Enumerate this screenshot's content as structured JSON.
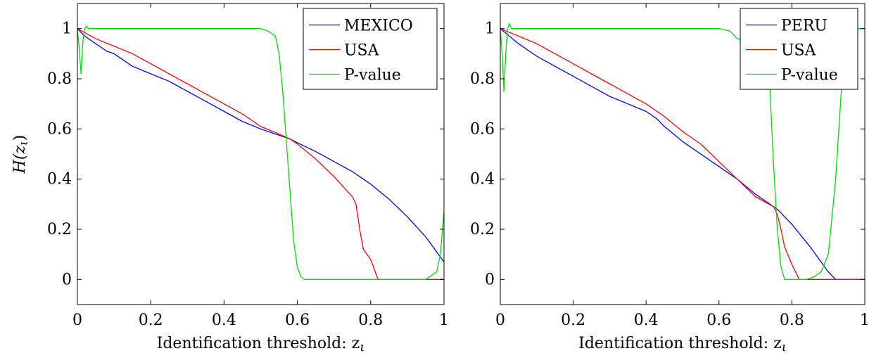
{
  "chart_data": [
    {
      "type": "line",
      "xlabel": "Identification threshold: z",
      "xlabel_sub": "ι",
      "ylabel": "H(z",
      "ylabel_sub": "ι",
      "ylabel_close": ")",
      "xlim": [
        0,
        1
      ],
      "ylim": [
        -0.1,
        1.1
      ],
      "xticks": [
        0,
        0.2,
        0.4,
        0.6,
        0.8,
        1
      ],
      "xtick_labels": [
        "0",
        "0.2",
        "0.4",
        "0.6",
        "0.8",
        "1"
      ],
      "yticks": [
        0,
        0.2,
        0.4,
        0.6,
        0.8,
        1
      ],
      "ytick_labels": [
        "0",
        "0.2",
        "0.4",
        "0.6",
        "0.8",
        "1"
      ],
      "grid": false,
      "legend_position": "top-right",
      "series": [
        {
          "name": "MEXICO",
          "color": "#0000ff",
          "x": [
            0,
            0.02,
            0.05,
            0.08,
            0.1,
            0.13,
            0.15,
            0.2,
            0.25,
            0.3,
            0.35,
            0.4,
            0.45,
            0.5,
            0.55,
            0.58,
            0.6,
            0.65,
            0.7,
            0.75,
            0.8,
            0.85,
            0.9,
            0.95,
            1.0
          ],
          "y": [
            1.0,
            0.97,
            0.94,
            0.91,
            0.9,
            0.87,
            0.85,
            0.82,
            0.79,
            0.75,
            0.71,
            0.67,
            0.63,
            0.6,
            0.575,
            0.56,
            0.545,
            0.51,
            0.47,
            0.43,
            0.38,
            0.32,
            0.25,
            0.17,
            0.07
          ]
        },
        {
          "name": "USA",
          "color": "#ff0000",
          "x": [
            0,
            0.05,
            0.1,
            0.15,
            0.2,
            0.25,
            0.3,
            0.35,
            0.4,
            0.45,
            0.5,
            0.55,
            0.58,
            0.6,
            0.65,
            0.7,
            0.75,
            0.76,
            0.77,
            0.78,
            0.8,
            0.82,
            0.85,
            0.9,
            0.95,
            1.0
          ],
          "y": [
            1.0,
            0.96,
            0.93,
            0.9,
            0.86,
            0.82,
            0.78,
            0.74,
            0.7,
            0.66,
            0.61,
            0.58,
            0.56,
            0.54,
            0.48,
            0.41,
            0.33,
            0.3,
            0.2,
            0.12,
            0.08,
            0.0,
            0.0,
            0.0,
            0.0,
            0.0
          ]
        },
        {
          "name": "P-value",
          "color": "#00dd00",
          "x": [
            0,
            0.005,
            0.01,
            0.015,
            0.02,
            0.025,
            0.03,
            0.1,
            0.2,
            0.3,
            0.4,
            0.5,
            0.52,
            0.54,
            0.55,
            0.56,
            0.57,
            0.58,
            0.59,
            0.6,
            0.61,
            0.62,
            0.63,
            0.7,
            0.8,
            0.9,
            0.95,
            0.97,
            0.98,
            0.99,
            1.0
          ],
          "y": [
            1.0,
            0.92,
            0.82,
            0.95,
            1.0,
            1.01,
            1.0,
            1.0,
            1.0,
            1.0,
            1.0,
            1.0,
            0.99,
            0.97,
            0.9,
            0.75,
            0.55,
            0.35,
            0.15,
            0.05,
            0.01,
            0.0,
            0.0,
            0.0,
            0.0,
            0.0,
            0.0,
            0.02,
            0.03,
            0.1,
            0.27
          ]
        }
      ]
    },
    {
      "type": "line",
      "xlabel": "Identification threshold: z",
      "xlabel_sub": "ι",
      "ylabel": "",
      "xlim": [
        0,
        1
      ],
      "ylim": [
        -0.1,
        1.1
      ],
      "xticks": [
        0,
        0.2,
        0.4,
        0.6,
        0.8,
        1
      ],
      "xtick_labels": [
        "0",
        "0.2",
        "0.4",
        "0.6",
        "0.8",
        "1"
      ],
      "yticks": [
        0,
        0.2,
        0.4,
        0.6,
        0.8,
        1
      ],
      "ytick_labels": [
        "0",
        "0.2",
        "0.4",
        "0.6",
        "0.8",
        "1"
      ],
      "grid": false,
      "legend_position": "top-right",
      "series": [
        {
          "name": "PERU",
          "color": "#0000ff",
          "x": [
            0,
            0.05,
            0.1,
            0.15,
            0.2,
            0.25,
            0.3,
            0.35,
            0.4,
            0.43,
            0.45,
            0.5,
            0.55,
            0.6,
            0.65,
            0.7,
            0.75,
            0.76,
            0.8,
            0.85,
            0.88,
            0.9,
            0.92,
            0.95,
            1.0
          ],
          "y": [
            1.0,
            0.94,
            0.89,
            0.85,
            0.81,
            0.77,
            0.73,
            0.7,
            0.67,
            0.64,
            0.61,
            0.55,
            0.5,
            0.45,
            0.4,
            0.34,
            0.29,
            0.28,
            0.22,
            0.13,
            0.07,
            0.03,
            0.0,
            0.0,
            0.0
          ]
        },
        {
          "name": "USA",
          "color": "#ff0000",
          "x": [
            0,
            0.05,
            0.1,
            0.15,
            0.2,
            0.25,
            0.3,
            0.35,
            0.4,
            0.45,
            0.5,
            0.55,
            0.6,
            0.65,
            0.7,
            0.75,
            0.76,
            0.77,
            0.78,
            0.8,
            0.82,
            0.85,
            0.9,
            0.95,
            1.0
          ],
          "y": [
            1.0,
            0.97,
            0.94,
            0.9,
            0.86,
            0.82,
            0.78,
            0.74,
            0.7,
            0.65,
            0.59,
            0.54,
            0.47,
            0.4,
            0.33,
            0.29,
            0.26,
            0.2,
            0.13,
            0.06,
            0.0,
            0.0,
            0.0,
            0.0,
            0.0
          ]
        },
        {
          "name": "P-value",
          "color": "#00dd00",
          "x": [
            0,
            0.005,
            0.01,
            0.015,
            0.02,
            0.025,
            0.03,
            0.1,
            0.2,
            0.3,
            0.4,
            0.5,
            0.6,
            0.63,
            0.65,
            0.67,
            0.69,
            0.7,
            0.72,
            0.74,
            0.75,
            0.76,
            0.77,
            0.78,
            0.8,
            0.84,
            0.86,
            0.88,
            0.9,
            0.92,
            0.94,
            0.96,
            0.98,
            1.0
          ],
          "y": [
            1.0,
            0.9,
            0.75,
            0.9,
            1.0,
            1.02,
            1.0,
            1.0,
            1.0,
            1.0,
            1.0,
            1.0,
            1.0,
            0.99,
            0.96,
            0.95,
            0.97,
            0.98,
            0.95,
            0.75,
            0.45,
            0.2,
            0.05,
            0.0,
            0.0,
            0.0,
            0.01,
            0.03,
            0.1,
            0.4,
            0.85,
            1.0,
            1.0,
            1.0
          ]
        }
      ]
    }
  ]
}
